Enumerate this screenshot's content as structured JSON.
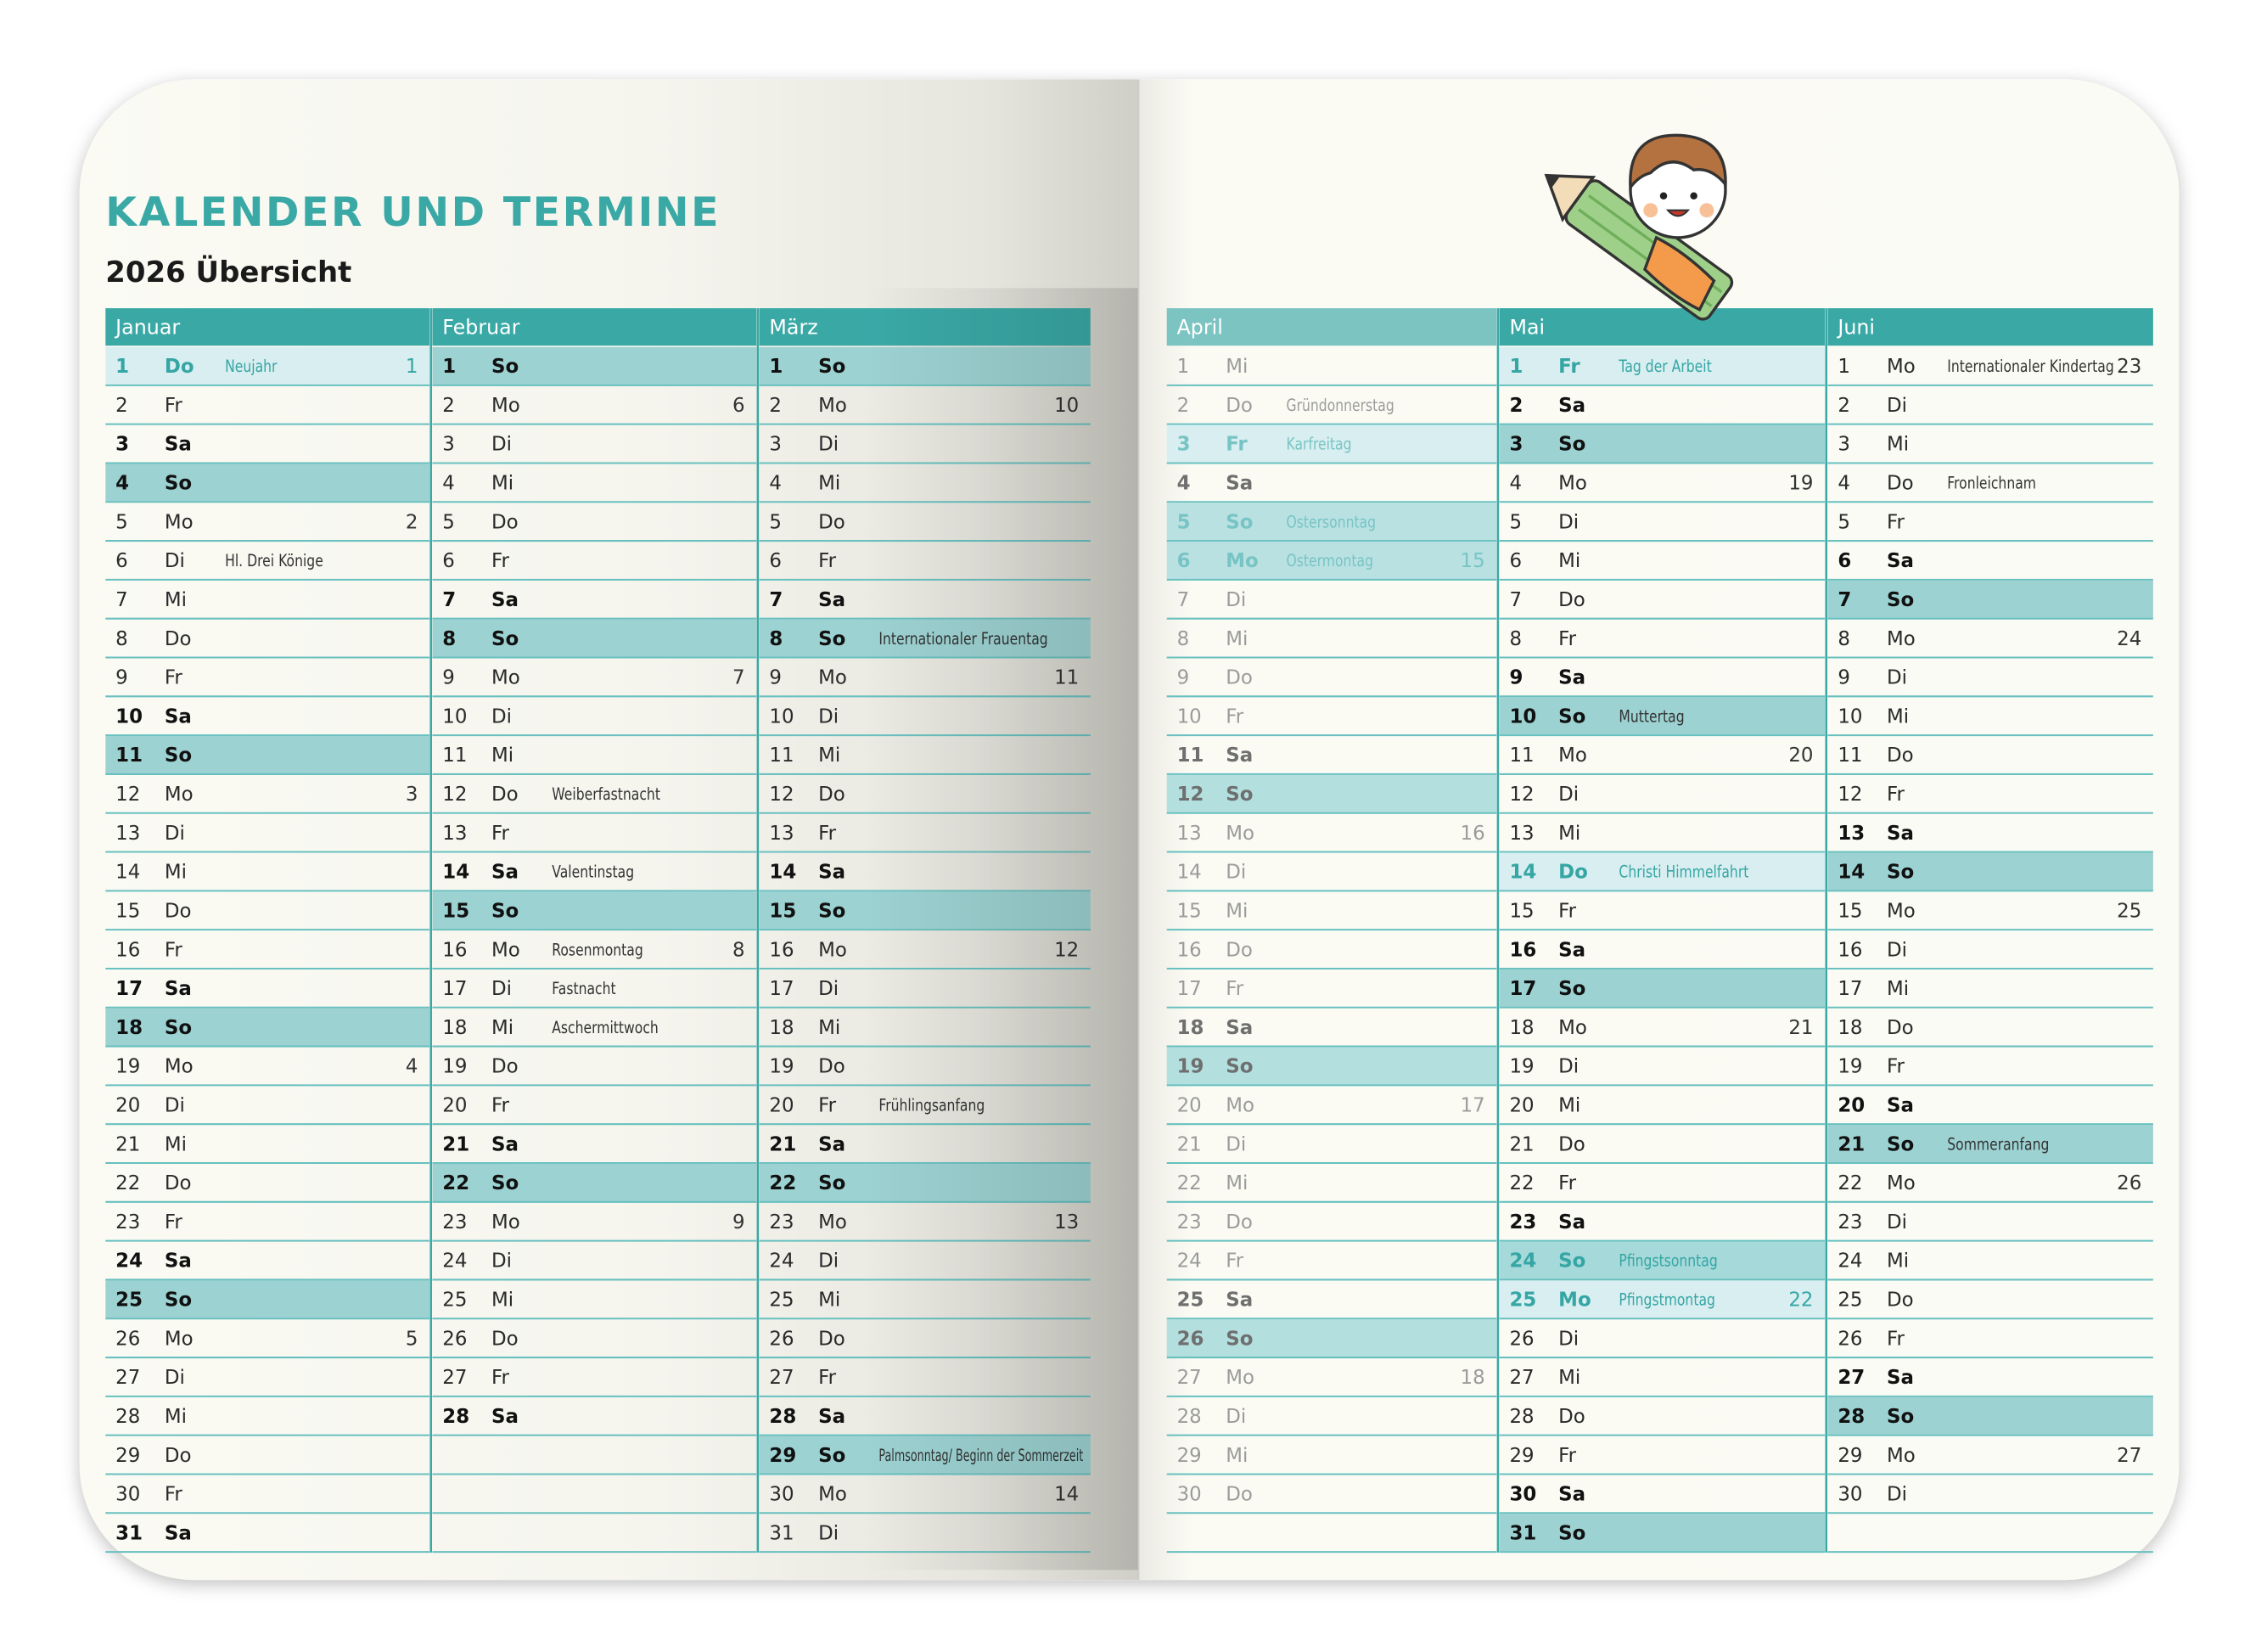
{
  "header": {
    "title": "KALENDER UND TERMINE",
    "subtitle": "2026 Übersicht"
  },
  "months": [
    {
      "name": "Januar",
      "days": [
        {
          "d": 1,
          "w": "Do",
          "note": "Neujahr",
          "kw": 1,
          "style": "holiday"
        },
        {
          "d": 2,
          "w": "Fr"
        },
        {
          "d": 3,
          "w": "Sa",
          "style": "bold"
        },
        {
          "d": 4,
          "w": "So",
          "style": "shaded"
        },
        {
          "d": 5,
          "w": "Mo",
          "kw": 2
        },
        {
          "d": 6,
          "w": "Di",
          "note": "Hl. Drei Könige"
        },
        {
          "d": 7,
          "w": "Mi"
        },
        {
          "d": 8,
          "w": "Do"
        },
        {
          "d": 9,
          "w": "Fr"
        },
        {
          "d": 10,
          "w": "Sa",
          "style": "bold"
        },
        {
          "d": 11,
          "w": "So",
          "style": "shaded"
        },
        {
          "d": 12,
          "w": "Mo",
          "kw": 3
        },
        {
          "d": 13,
          "w": "Di"
        },
        {
          "d": 14,
          "w": "Mi"
        },
        {
          "d": 15,
          "w": "Do"
        },
        {
          "d": 16,
          "w": "Fr"
        },
        {
          "d": 17,
          "w": "Sa",
          "style": "bold"
        },
        {
          "d": 18,
          "w": "So",
          "style": "shaded"
        },
        {
          "d": 19,
          "w": "Mo",
          "kw": 4
        },
        {
          "d": 20,
          "w": "Di"
        },
        {
          "d": 21,
          "w": "Mi"
        },
        {
          "d": 22,
          "w": "Do"
        },
        {
          "d": 23,
          "w": "Fr"
        },
        {
          "d": 24,
          "w": "Sa",
          "style": "bold"
        },
        {
          "d": 25,
          "w": "So",
          "style": "shaded"
        },
        {
          "d": 26,
          "w": "Mo",
          "kw": 5
        },
        {
          "d": 27,
          "w": "Di"
        },
        {
          "d": 28,
          "w": "Mi"
        },
        {
          "d": 29,
          "w": "Do"
        },
        {
          "d": 30,
          "w": "Fr"
        },
        {
          "d": 31,
          "w": "Sa",
          "style": "bold"
        }
      ]
    },
    {
      "name": "Februar",
      "days": [
        {
          "d": 1,
          "w": "So",
          "style": "shaded"
        },
        {
          "d": 2,
          "w": "Mo",
          "kw": 6
        },
        {
          "d": 3,
          "w": "Di"
        },
        {
          "d": 4,
          "w": "Mi"
        },
        {
          "d": 5,
          "w": "Do"
        },
        {
          "d": 6,
          "w": "Fr"
        },
        {
          "d": 7,
          "w": "Sa",
          "style": "bold"
        },
        {
          "d": 8,
          "w": "So",
          "style": "shaded"
        },
        {
          "d": 9,
          "w": "Mo",
          "kw": 7
        },
        {
          "d": 10,
          "w": "Di"
        },
        {
          "d": 11,
          "w": "Mi"
        },
        {
          "d": 12,
          "w": "Do",
          "note": "Weiberfastnacht"
        },
        {
          "d": 13,
          "w": "Fr"
        },
        {
          "d": 14,
          "w": "Sa",
          "note": "Valentinstag",
          "style": "bold"
        },
        {
          "d": 15,
          "w": "So",
          "style": "shaded"
        },
        {
          "d": 16,
          "w": "Mo",
          "note": "Rosenmontag",
          "kw": 8
        },
        {
          "d": 17,
          "w": "Di",
          "note": "Fastnacht"
        },
        {
          "d": 18,
          "w": "Mi",
          "note": "Aschermittwoch"
        },
        {
          "d": 19,
          "w": "Do"
        },
        {
          "d": 20,
          "w": "Fr"
        },
        {
          "d": 21,
          "w": "Sa",
          "style": "bold"
        },
        {
          "d": 22,
          "w": "So",
          "style": "shaded"
        },
        {
          "d": 23,
          "w": "Mo",
          "kw": 9
        },
        {
          "d": 24,
          "w": "Di"
        },
        {
          "d": 25,
          "w": "Mi"
        },
        {
          "d": 26,
          "w": "Do"
        },
        {
          "d": 27,
          "w": "Fr"
        },
        {
          "d": 28,
          "w": "Sa",
          "style": "bold"
        }
      ]
    },
    {
      "name": "März",
      "days": [
        {
          "d": 1,
          "w": "So",
          "style": "shaded"
        },
        {
          "d": 2,
          "w": "Mo",
          "kw": 10
        },
        {
          "d": 3,
          "w": "Di"
        },
        {
          "d": 4,
          "w": "Mi"
        },
        {
          "d": 5,
          "w": "Do"
        },
        {
          "d": 6,
          "w": "Fr"
        },
        {
          "d": 7,
          "w": "Sa",
          "style": "bold"
        },
        {
          "d": 8,
          "w": "So",
          "note": "Internationaler Frauentag",
          "style": "shaded"
        },
        {
          "d": 9,
          "w": "Mo",
          "kw": 11
        },
        {
          "d": 10,
          "w": "Di"
        },
        {
          "d": 11,
          "w": "Mi"
        },
        {
          "d": 12,
          "w": "Do"
        },
        {
          "d": 13,
          "w": "Fr"
        },
        {
          "d": 14,
          "w": "Sa",
          "style": "bold"
        },
        {
          "d": 15,
          "w": "So",
          "style": "shaded"
        },
        {
          "d": 16,
          "w": "Mo",
          "kw": 12
        },
        {
          "d": 17,
          "w": "Di"
        },
        {
          "d": 18,
          "w": "Mi"
        },
        {
          "d": 19,
          "w": "Do"
        },
        {
          "d": 20,
          "w": "Fr",
          "note": "Frühlingsanfang"
        },
        {
          "d": 21,
          "w": "Sa",
          "style": "bold"
        },
        {
          "d": 22,
          "w": "So",
          "style": "shaded"
        },
        {
          "d": 23,
          "w": "Mo",
          "kw": 13
        },
        {
          "d": 24,
          "w": "Di"
        },
        {
          "d": 25,
          "w": "Mi"
        },
        {
          "d": 26,
          "w": "Do"
        },
        {
          "d": 27,
          "w": "Fr"
        },
        {
          "d": 28,
          "w": "Sa",
          "style": "bold"
        },
        {
          "d": 29,
          "w": "So",
          "note": "Palmsonntag/ Beginn der Sommerzeit",
          "style": "shaded"
        },
        {
          "d": 30,
          "w": "Mo",
          "kw": 14
        },
        {
          "d": 31,
          "w": "Di"
        }
      ]
    },
    {
      "name": "April",
      "muted": true,
      "days": [
        {
          "d": 1,
          "w": "Mi"
        },
        {
          "d": 2,
          "w": "Do",
          "note": "Gründonnerstag"
        },
        {
          "d": 3,
          "w": "Fr",
          "note": "Karfreitag",
          "style": "holiday"
        },
        {
          "d": 4,
          "w": "Sa",
          "style": "bold"
        },
        {
          "d": 5,
          "w": "So",
          "note": "Ostersonntag",
          "style": "holiday-shaded"
        },
        {
          "d": 6,
          "w": "Mo",
          "note": "Ostermontag",
          "kw": 15,
          "style": "holiday-shaded"
        },
        {
          "d": 7,
          "w": "Di"
        },
        {
          "d": 8,
          "w": "Mi"
        },
        {
          "d": 9,
          "w": "Do"
        },
        {
          "d": 10,
          "w": "Fr"
        },
        {
          "d": 11,
          "w": "Sa",
          "style": "bold"
        },
        {
          "d": 12,
          "w": "So",
          "style": "shaded"
        },
        {
          "d": 13,
          "w": "Mo",
          "kw": 16
        },
        {
          "d": 14,
          "w": "Di"
        },
        {
          "d": 15,
          "w": "Mi"
        },
        {
          "d": 16,
          "w": "Do"
        },
        {
          "d": 17,
          "w": "Fr"
        },
        {
          "d": 18,
          "w": "Sa",
          "style": "bold"
        },
        {
          "d": 19,
          "w": "So",
          "style": "shaded"
        },
        {
          "d": 20,
          "w": "Mo",
          "kw": 17
        },
        {
          "d": 21,
          "w": "Di"
        },
        {
          "d": 22,
          "w": "Mi"
        },
        {
          "d": 23,
          "w": "Do"
        },
        {
          "d": 24,
          "w": "Fr"
        },
        {
          "d": 25,
          "w": "Sa",
          "style": "bold"
        },
        {
          "d": 26,
          "w": "So",
          "style": "shaded"
        },
        {
          "d": 27,
          "w": "Mo",
          "kw": 18
        },
        {
          "d": 28,
          "w": "Di"
        },
        {
          "d": 29,
          "w": "Mi"
        },
        {
          "d": 30,
          "w": "Do"
        }
      ]
    },
    {
      "name": "Mai",
      "days": [
        {
          "d": 1,
          "w": "Fr",
          "note": "Tag der Arbeit",
          "style": "holiday"
        },
        {
          "d": 2,
          "w": "Sa",
          "style": "bold"
        },
        {
          "d": 3,
          "w": "So",
          "style": "shaded"
        },
        {
          "d": 4,
          "w": "Mo",
          "kw": 19
        },
        {
          "d": 5,
          "w": "Di"
        },
        {
          "d": 6,
          "w": "Mi"
        },
        {
          "d": 7,
          "w": "Do"
        },
        {
          "d": 8,
          "w": "Fr"
        },
        {
          "d": 9,
          "w": "Sa",
          "style": "bold"
        },
        {
          "d": 10,
          "w": "So",
          "note": "Muttertag",
          "style": "shaded"
        },
        {
          "d": 11,
          "w": "Mo",
          "kw": 20
        },
        {
          "d": 12,
          "w": "Di"
        },
        {
          "d": 13,
          "w": "Mi"
        },
        {
          "d": 14,
          "w": "Do",
          "note": "Christi Himmelfahrt",
          "style": "holiday"
        },
        {
          "d": 15,
          "w": "Fr"
        },
        {
          "d": 16,
          "w": "Sa",
          "style": "bold"
        },
        {
          "d": 17,
          "w": "So",
          "style": "shaded"
        },
        {
          "d": 18,
          "w": "Mo",
          "kw": 21
        },
        {
          "d": 19,
          "w": "Di"
        },
        {
          "d": 20,
          "w": "Mi"
        },
        {
          "d": 21,
          "w": "Do"
        },
        {
          "d": 22,
          "w": "Fr"
        },
        {
          "d": 23,
          "w": "Sa",
          "style": "bold"
        },
        {
          "d": 24,
          "w": "So",
          "note": "Pfingstsonntag",
          "style": "holiday-shaded"
        },
        {
          "d": 25,
          "w": "Mo",
          "note": "Pfingstmontag",
          "kw": 22,
          "style": "holiday"
        },
        {
          "d": 26,
          "w": "Di"
        },
        {
          "d": 27,
          "w": "Mi"
        },
        {
          "d": 28,
          "w": "Do"
        },
        {
          "d": 29,
          "w": "Fr"
        },
        {
          "d": 30,
          "w": "Sa",
          "style": "bold"
        },
        {
          "d": 31,
          "w": "So",
          "style": "shaded"
        }
      ]
    },
    {
      "name": "Juni",
      "days": [
        {
          "d": 1,
          "w": "Mo",
          "note": "Internationaler Kindertag",
          "kw": 23
        },
        {
          "d": 2,
          "w": "Di"
        },
        {
          "d": 3,
          "w": "Mi"
        },
        {
          "d": 4,
          "w": "Do",
          "note": "Fronleichnam"
        },
        {
          "d": 5,
          "w": "Fr"
        },
        {
          "d": 6,
          "w": "Sa",
          "style": "bold"
        },
        {
          "d": 7,
          "w": "So",
          "style": "shaded"
        },
        {
          "d": 8,
          "w": "Mo",
          "kw": 24
        },
        {
          "d": 9,
          "w": "Di"
        },
        {
          "d": 10,
          "w": "Mi"
        },
        {
          "d": 11,
          "w": "Do"
        },
        {
          "d": 12,
          "w": "Fr"
        },
        {
          "d": 13,
          "w": "Sa",
          "style": "bold"
        },
        {
          "d": 14,
          "w": "So",
          "style": "shaded"
        },
        {
          "d": 15,
          "w": "Mo",
          "kw": 25
        },
        {
          "d": 16,
          "w": "Di"
        },
        {
          "d": 17,
          "w": "Mi"
        },
        {
          "d": 18,
          "w": "Do"
        },
        {
          "d": 19,
          "w": "Fr"
        },
        {
          "d": 20,
          "w": "Sa",
          "style": "bold"
        },
        {
          "d": 21,
          "w": "So",
          "note": "Sommeranfang",
          "style": "shaded"
        },
        {
          "d": 22,
          "w": "Mo",
          "kw": 26
        },
        {
          "d": 23,
          "w": "Di"
        },
        {
          "d": 24,
          "w": "Mi"
        },
        {
          "d": 25,
          "w": "Do"
        },
        {
          "d": 26,
          "w": "Fr"
        },
        {
          "d": 27,
          "w": "Sa",
          "style": "bold"
        },
        {
          "d": 28,
          "w": "So",
          "style": "shaded"
        },
        {
          "d": 29,
          "w": "Mo",
          "kw": 27
        },
        {
          "d": 30,
          "w": "Di"
        }
      ]
    }
  ]
}
